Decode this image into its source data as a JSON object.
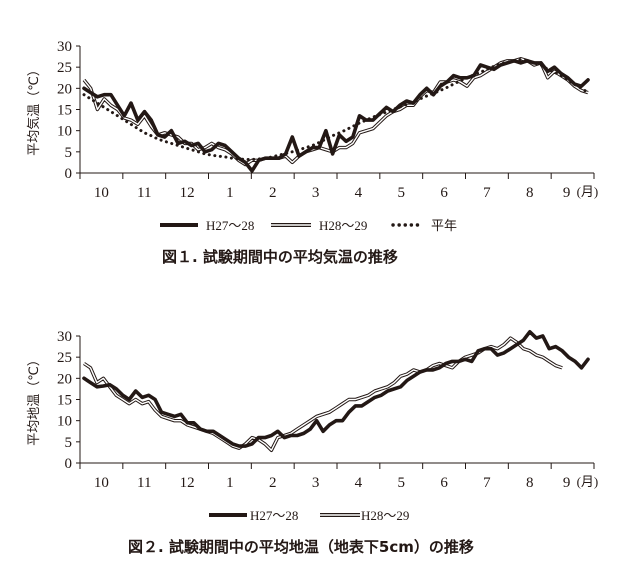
{
  "chart_data": [
    {
      "type": "line",
      "caption": "図１. 試験期間中の平均気温の推移",
      "ylabel": "平均気温（℃）",
      "ylim": [
        0,
        30
      ],
      "yticks": [
        "0",
        "5",
        "10",
        "15",
        "20",
        "25",
        "30"
      ],
      "month_labels": [
        "10",
        "11",
        "12",
        "1",
        "2",
        "3",
        "4",
        "5",
        "6",
        "7",
        "8",
        "9"
      ],
      "month_unit": "(月)",
      "series": [
        {
          "name": "H27～28",
          "style": "thick",
          "values": [
            20,
            19,
            18,
            18.5,
            18.5,
            16,
            13.5,
            16.5,
            12.5,
            14.5,
            12.5,
            9,
            8.5,
            10,
            7,
            7.5,
            6.5,
            7,
            5,
            5.5,
            7,
            6.5,
            5,
            3.5,
            2.5,
            0.5,
            3,
            3.5,
            3.5,
            3.5,
            4.5,
            8.5,
            4,
            5,
            6,
            6,
            10,
            4.5,
            9,
            7.5,
            8.5,
            13.5,
            12.5,
            12.5,
            14,
            15.5,
            14.5,
            16,
            17,
            16.5,
            18.5,
            20,
            18.5,
            20.5,
            21.5,
            23,
            22.5,
            22.5,
            23,
            25.5,
            25,
            24.5,
            25.5,
            26,
            26.5,
            26,
            26.5,
            26,
            26,
            24,
            25,
            23.5,
            22.5,
            21,
            20.5,
            22
          ]
        },
        {
          "name": "H28～29",
          "style": "double",
          "values": [
            22,
            20,
            15,
            17.5,
            16,
            15,
            13,
            12.5,
            11.5,
            13.5,
            11,
            9,
            9.5,
            9,
            8.5,
            7,
            7,
            5.5,
            6,
            7,
            6,
            5.5,
            4.5,
            3,
            2,
            3,
            3,
            3.5,
            3.5,
            3.5,
            4,
            2.5,
            4,
            5,
            5.5,
            6,
            5.5,
            5,
            6,
            6,
            7,
            9.5,
            10,
            10.5,
            12,
            13.5,
            14.5,
            15,
            16,
            16,
            18,
            19.5,
            19,
            21.5,
            21.5,
            22,
            21.5,
            20.5,
            22.5,
            23,
            24,
            25,
            26,
            26.5,
            26.5,
            27,
            26.5,
            25.5,
            26,
            22.5,
            24,
            23,
            22,
            20.5,
            19.5,
            19
          ]
        },
        {
          "name": "平年",
          "style": "dotted",
          "values": [
            18.5,
            17.5,
            16.5,
            15.5,
            14.5,
            13.5,
            12.5,
            11.5,
            10.5,
            9.5,
            8.8,
            8,
            7.5,
            7,
            6.5,
            6,
            5.5,
            5,
            4.5,
            4.2,
            4,
            3.8,
            3.5,
            3.3,
            3.2,
            3.2,
            3.3,
            3.5,
            3.8,
            4.2,
            4.6,
            5,
            5.5,
            6,
            6.5,
            7.2,
            8,
            8.8,
            9.5,
            10.2,
            11,
            11.8,
            12.5,
            13.2,
            13.8,
            14.4,
            15,
            15.6,
            16.2,
            16.8,
            17.5,
            18.2,
            18.8,
            19.5,
            20.2,
            21,
            21.8,
            22.5,
            23.2,
            23.8,
            24.5,
            25.2,
            25.8,
            26.2,
            26.5,
            26.8,
            26.5,
            26,
            25.5,
            24.5,
            23.8,
            23,
            22,
            21,
            20,
            19
          ]
        }
      ]
    },
    {
      "type": "line",
      "caption": "図２. 試験期間中の平均地温（地表下5cm）の推移",
      "ylabel": "平均地温（℃）",
      "ylim": [
        0,
        30
      ],
      "yticks": [
        "0",
        "5",
        "10",
        "15",
        "20",
        "25",
        "30"
      ],
      "month_labels": [
        "10",
        "11",
        "12",
        "1",
        "2",
        "3",
        "4",
        "5",
        "6",
        "7",
        "8",
        "9"
      ],
      "month_unit": "(月)",
      "series": [
        {
          "name": "H27～28",
          "style": "thick",
          "values": [
            20,
            19,
            18,
            18.2,
            18.5,
            17.5,
            16,
            15,
            17,
            15.5,
            16,
            15,
            12,
            11.5,
            11,
            11.5,
            9.5,
            9.5,
            8,
            7.5,
            7.5,
            6.5,
            5.5,
            4.5,
            4,
            4,
            4.5,
            6,
            6,
            6.5,
            7.5,
            6,
            6.5,
            6.5,
            7,
            8,
            10,
            7.5,
            9,
            10,
            10,
            12,
            13.5,
            13.5,
            14.5,
            15.5,
            16,
            17,
            17.5,
            18,
            19.5,
            20.5,
            21.5,
            22,
            22,
            22.5,
            23.5,
            24,
            24,
            24.5,
            24,
            26.5,
            27,
            27,
            25.5,
            26,
            27,
            28,
            29,
            31,
            29.5,
            30,
            27,
            27.5,
            26.5,
            25,
            24,
            22.5,
            24.5
          ]
        },
        {
          "name": "H28～29",
          "style": "double",
          "values": [
            23.5,
            22.5,
            19,
            20,
            18,
            16,
            15,
            14,
            15,
            14,
            14.5,
            12.5,
            11,
            10.5,
            10,
            10,
            9,
            8.5,
            8,
            7.5,
            7,
            6,
            5,
            4,
            3.5,
            4.5,
            6,
            5.5,
            4.5,
            3,
            6,
            6.5,
            7,
            8,
            9,
            10,
            11,
            11.5,
            12,
            13,
            14,
            15,
            15,
            15.5,
            16,
            17,
            17.5,
            18,
            19,
            20.5,
            21,
            22,
            21.5,
            22,
            23,
            23.5,
            23,
            22.5,
            24,
            25,
            25.5,
            26,
            27,
            27.5,
            27,
            28,
            29.5,
            28.5,
            27,
            26.5,
            25.5,
            25,
            24,
            23,
            22.5
          ]
        }
      ]
    }
  ]
}
